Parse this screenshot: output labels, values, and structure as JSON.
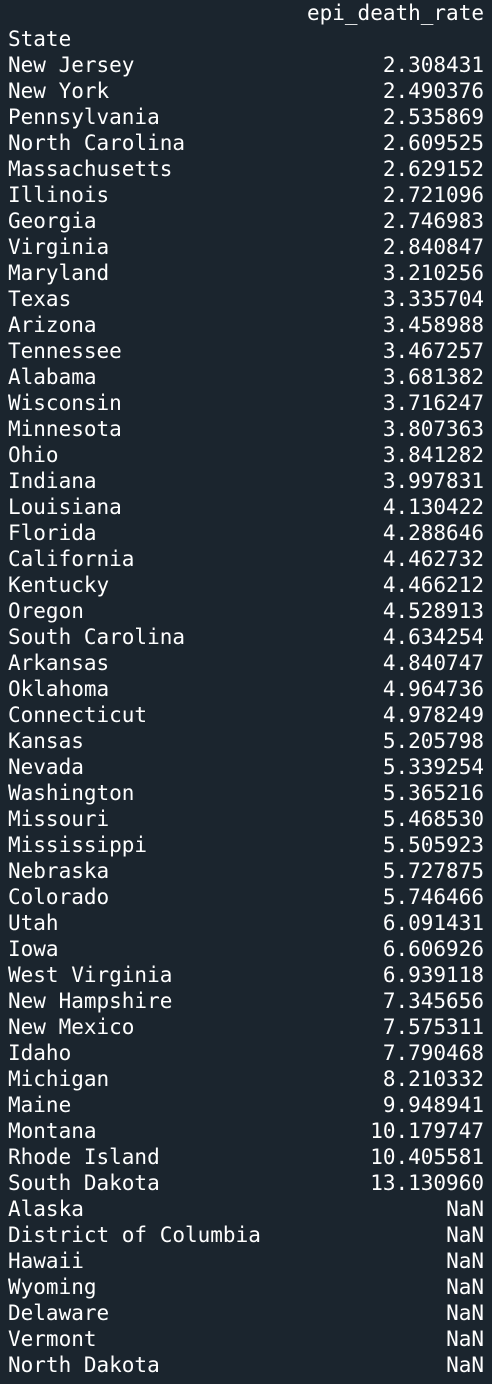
{
  "column_header": "epi_death_rate",
  "index_name": "State",
  "rows": [
    {
      "state": "New Jersey",
      "value": "2.308431"
    },
    {
      "state": "New York",
      "value": "2.490376"
    },
    {
      "state": "Pennsylvania",
      "value": "2.535869"
    },
    {
      "state": "North Carolina",
      "value": "2.609525"
    },
    {
      "state": "Massachusetts",
      "value": "2.629152"
    },
    {
      "state": "Illinois",
      "value": "2.721096"
    },
    {
      "state": "Georgia",
      "value": "2.746983"
    },
    {
      "state": "Virginia",
      "value": "2.840847"
    },
    {
      "state": "Maryland",
      "value": "3.210256"
    },
    {
      "state": "Texas",
      "value": "3.335704"
    },
    {
      "state": "Arizona",
      "value": "3.458988"
    },
    {
      "state": "Tennessee",
      "value": "3.467257"
    },
    {
      "state": "Alabama",
      "value": "3.681382"
    },
    {
      "state": "Wisconsin",
      "value": "3.716247"
    },
    {
      "state": "Minnesota",
      "value": "3.807363"
    },
    {
      "state": "Ohio",
      "value": "3.841282"
    },
    {
      "state": "Indiana",
      "value": "3.997831"
    },
    {
      "state": "Louisiana",
      "value": "4.130422"
    },
    {
      "state": "Florida",
      "value": "4.288646"
    },
    {
      "state": "California",
      "value": "4.462732"
    },
    {
      "state": "Kentucky",
      "value": "4.466212"
    },
    {
      "state": "Oregon",
      "value": "4.528913"
    },
    {
      "state": "South Carolina",
      "value": "4.634254"
    },
    {
      "state": "Arkansas",
      "value": "4.840747"
    },
    {
      "state": "Oklahoma",
      "value": "4.964736"
    },
    {
      "state": "Connecticut",
      "value": "4.978249"
    },
    {
      "state": "Kansas",
      "value": "5.205798"
    },
    {
      "state": "Nevada",
      "value": "5.339254"
    },
    {
      "state": "Washington",
      "value": "5.365216"
    },
    {
      "state": "Missouri",
      "value": "5.468530"
    },
    {
      "state": "Mississippi",
      "value": "5.505923"
    },
    {
      "state": "Nebraska",
      "value": "5.727875"
    },
    {
      "state": "Colorado",
      "value": "5.746466"
    },
    {
      "state": "Utah",
      "value": "6.091431"
    },
    {
      "state": "Iowa",
      "value": "6.606926"
    },
    {
      "state": "West Virginia",
      "value": "6.939118"
    },
    {
      "state": "New Hampshire",
      "value": "7.345656"
    },
    {
      "state": "New Mexico",
      "value": "7.575311"
    },
    {
      "state": "Idaho",
      "value": "7.790468"
    },
    {
      "state": "Michigan",
      "value": "8.210332"
    },
    {
      "state": "Maine",
      "value": "9.948941"
    },
    {
      "state": "Montana",
      "value": "10.179747"
    },
    {
      "state": "Rhode Island",
      "value": "10.405581"
    },
    {
      "state": "South Dakota",
      "value": "13.130960"
    },
    {
      "state": "Alaska",
      "value": "NaN"
    },
    {
      "state": "District of Columbia",
      "value": "NaN"
    },
    {
      "state": "Hawaii",
      "value": "NaN"
    },
    {
      "state": "Wyoming",
      "value": "NaN"
    },
    {
      "state": "Delaware",
      "value": "NaN"
    },
    {
      "state": "Vermont",
      "value": "NaN"
    },
    {
      "state": "North Dakota",
      "value": "NaN"
    }
  ]
}
